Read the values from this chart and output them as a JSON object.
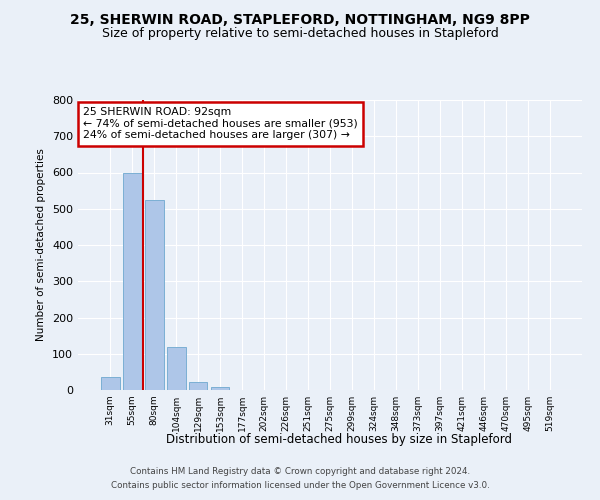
{
  "title": "25, SHERWIN ROAD, STAPLEFORD, NOTTINGHAM, NG9 8PP",
  "subtitle": "Size of property relative to semi-detached houses in Stapleford",
  "xlabel": "Distribution of semi-detached houses by size in Stapleford",
  "ylabel": "Number of semi-detached properties",
  "footer_line1": "Contains HM Land Registry data © Crown copyright and database right 2024.",
  "footer_line2": "Contains public sector information licensed under the Open Government Licence v3.0.",
  "bar_labels": [
    "31sqm",
    "55sqm",
    "80sqm",
    "104sqm",
    "129sqm",
    "153sqm",
    "177sqm",
    "202sqm",
    "226sqm",
    "251sqm",
    "275sqm",
    "299sqm",
    "324sqm",
    "348sqm",
    "373sqm",
    "397sqm",
    "421sqm",
    "446sqm",
    "470sqm",
    "495sqm",
    "519sqm"
  ],
  "bar_values": [
    35,
    600,
    525,
    120,
    22,
    8,
    0,
    0,
    0,
    0,
    0,
    0,
    0,
    0,
    0,
    0,
    0,
    0,
    0,
    0,
    0
  ],
  "bar_color": "#aec6e8",
  "bar_edge_color": "#7bafd4",
  "annotation_line1": "25 SHERWIN ROAD: 92sqm",
  "annotation_line2": "← 74% of semi-detached houses are smaller (953)",
  "annotation_line3": "24% of semi-detached houses are larger (307) →",
  "annotation_box_color": "#ffffff",
  "annotation_box_edge_color": "#cc0000",
  "vline_x": 1.5,
  "vline_color": "#cc0000",
  "ylim": [
    0,
    800
  ],
  "yticks": [
    0,
    100,
    200,
    300,
    400,
    500,
    600,
    700,
    800
  ],
  "bg_color": "#eaf0f8",
  "plot_bg_color": "#eaf0f8",
  "title_fontsize": 10,
  "subtitle_fontsize": 9,
  "grid_color": "#ffffff"
}
